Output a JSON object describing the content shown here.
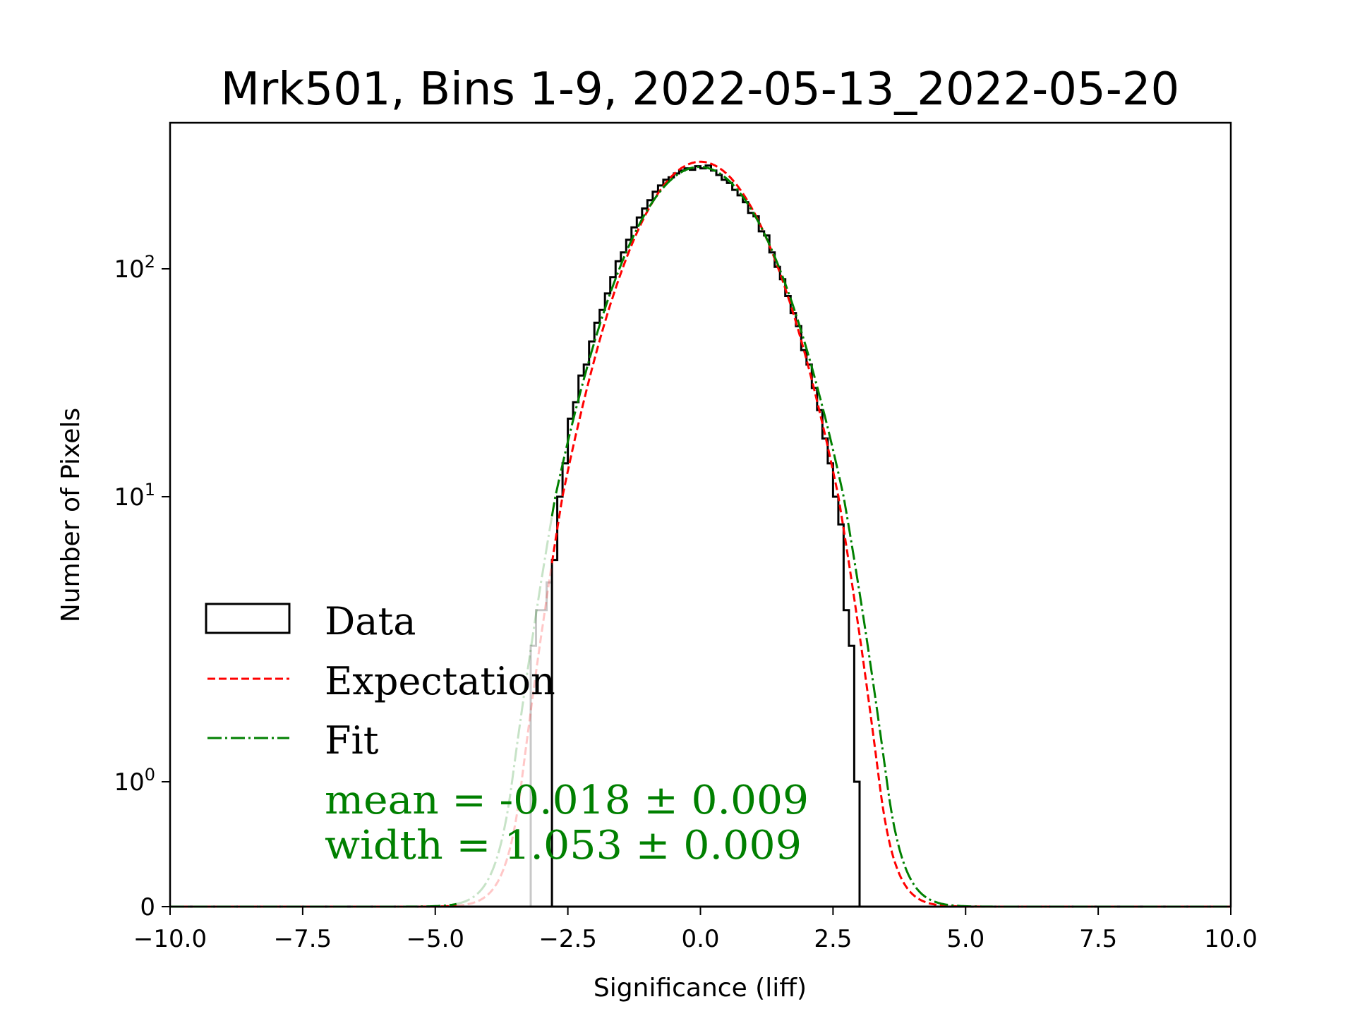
{
  "chart_data": {
    "type": "histogram",
    "title": "Mrk501, Bins 1-9, 2022-05-13_2022-05-20",
    "xlabel": "Significance (liff)",
    "ylabel": "Number of Pixels",
    "xlim": [
      -10,
      10
    ],
    "yscale": "symlog",
    "x_ticks": [
      -10,
      -7.5,
      -5,
      -2.5,
      0,
      2.5,
      5,
      7.5,
      10
    ],
    "x_tick_labels": [
      "−10.0",
      "−7.5",
      "−5.0",
      "−2.5",
      "0.0",
      "2.5",
      "5.0",
      "7.5",
      "10.0"
    ],
    "y_ticks": [
      {
        "value": 0,
        "base": "0",
        "exp": ""
      },
      {
        "value": 1,
        "base": "10",
        "exp": "0"
      },
      {
        "value": 10,
        "base": "10",
        "exp": "1"
      },
      {
        "value": 100,
        "base": "10",
        "exp": "2"
      }
    ],
    "histogram": {
      "bin_start": -3.2,
      "bin_width": 0.1,
      "excluded_below": -2.8,
      "counts": [
        3,
        4,
        4,
        5,
        6,
        10,
        14,
        22,
        26,
        34,
        38,
        48,
        58,
        66,
        78,
        92,
        108,
        118,
        134,
        152,
        168,
        184,
        200,
        218,
        232,
        246,
        252,
        262,
        270,
        276,
        272,
        282,
        276,
        284,
        270,
        258,
        246,
        238,
        222,
        210,
        196,
        176,
        170,
        146,
        140,
        118,
        102,
        90,
        76,
        64,
        56,
        44,
        38,
        30,
        24,
        18,
        14,
        10,
        8,
        4,
        3,
        1
      ]
    },
    "expectation": {
      "mean": 0.0,
      "sigma": 1.0,
      "amplitude": 295
    },
    "fit": {
      "mean": -0.018,
      "sigma": 1.053,
      "amplitude": 280
    },
    "legend": {
      "placement": "center-left",
      "entries": [
        {
          "label": "Data",
          "style": "step",
          "color": "#000000"
        },
        {
          "label": "Expectation",
          "style": "dashed",
          "color": "#ff0000"
        },
        {
          "label": "Fit",
          "style": "dashdot",
          "color": "#008000"
        }
      ]
    },
    "annotations": {
      "mean_text": "mean = -0.018 ± 0.009",
      "width_text": "width = 1.053 ± 0.009",
      "color": "#008000"
    },
    "excluded_color": "#c8c8c8"
  }
}
